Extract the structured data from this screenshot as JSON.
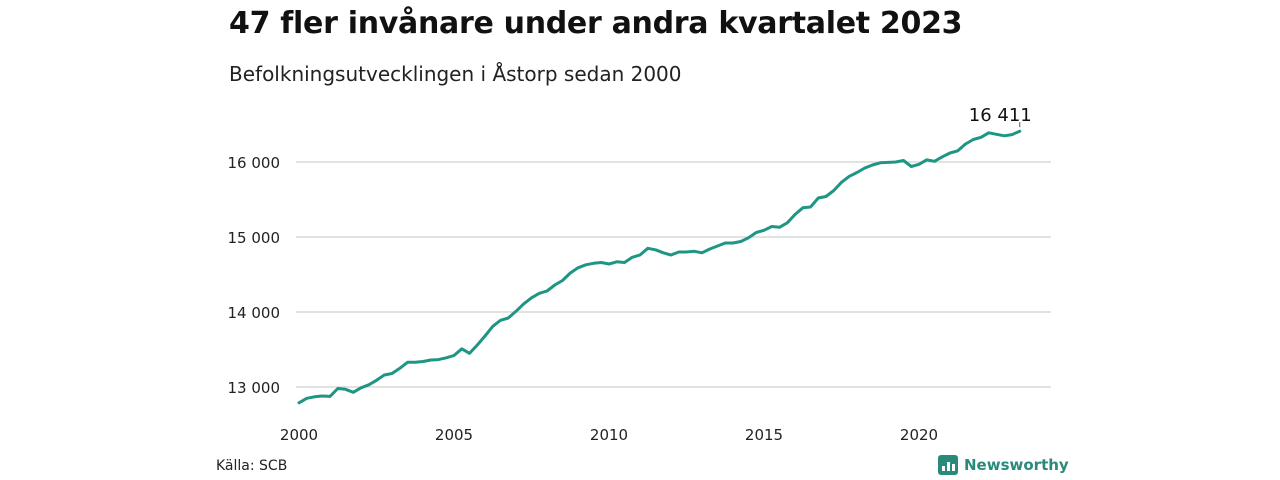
{
  "title": "47 fler invånare under andra kvartalet 2023",
  "subtitle": "Befolkningsutvecklingen i Åstorp sedan 2000",
  "source": "Källa: SCB",
  "brand": {
    "name": "Newsworthy",
    "icon": "newsworthy-logo-icon"
  },
  "colors": {
    "line": "#1f9584",
    "grid": "#d9d9d9",
    "text": "#222222",
    "brand": "#2a8a7a"
  },
  "chart_data": {
    "type": "line",
    "title": "47 fler invånare under andra kvartalet 2023",
    "xlabel": "",
    "ylabel": "",
    "xlim": [
      2000,
      2023.75
    ],
    "ylim": [
      12800,
      16600
    ],
    "x_ticks": [
      2000,
      2005,
      2010,
      2015,
      2020
    ],
    "x_tick_labels": [
      "2000",
      "2005",
      "2010",
      "2015",
      "2020"
    ],
    "y_ticks": [
      13000,
      14000,
      15000,
      16000
    ],
    "y_tick_labels": [
      "13 000",
      "14 000",
      "15 000",
      "16 000"
    ],
    "grid": true,
    "legend": "none",
    "end_label": "16 411",
    "series": [
      {
        "x": [
          2000.0,
          2000.25,
          2000.5,
          2000.75,
          2001.0,
          2001.25,
          2001.5,
          2001.75,
          2002.0,
          2002.25,
          2002.5,
          2002.75,
          2003.0,
          2003.25,
          2003.5,
          2003.75,
          2004.0,
          2004.25,
          2004.5,
          2004.75,
          2005.0,
          2005.25,
          2005.5,
          2005.75,
          2006.0,
          2006.25,
          2006.5,
          2006.75,
          2007.0,
          2007.25,
          2007.5,
          2007.75,
          2008.0,
          2008.25,
          2008.5,
          2008.75,
          2009.0,
          2009.25,
          2009.5,
          2009.75,
          2010.0,
          2010.25,
          2010.5,
          2010.75,
          2011.0,
          2011.25,
          2011.5,
          2011.75,
          2012.0,
          2012.25,
          2012.5,
          2012.75,
          2013.0,
          2013.25,
          2013.5,
          2013.75,
          2014.0,
          2014.25,
          2014.5,
          2014.75,
          2015.0,
          2015.25,
          2015.5,
          2015.75,
          2016.0,
          2016.25,
          2016.5,
          2016.75,
          2017.0,
          2017.25,
          2017.5,
          2017.75,
          2018.0,
          2018.25,
          2018.5,
          2018.75,
          2019.0,
          2019.25,
          2019.5,
          2019.75,
          2020.0,
          2020.25,
          2020.5,
          2020.75,
          2021.0,
          2021.25,
          2021.5,
          2021.75,
          2022.0,
          2022.25,
          2022.5,
          2022.75,
          2023.0,
          2023.25
        ],
        "values": [
          12790,
          12850,
          12870,
          12880,
          12875,
          12980,
          12970,
          12930,
          12990,
          13030,
          13090,
          13160,
          13180,
          13250,
          13330,
          13330,
          13340,
          13360,
          13365,
          13390,
          13420,
          13510,
          13450,
          13560,
          13680,
          13810,
          13890,
          13920,
          14010,
          14110,
          14190,
          14250,
          14280,
          14360,
          14420,
          14520,
          14590,
          14630,
          14650,
          14660,
          14640,
          14670,
          14660,
          14730,
          14760,
          14850,
          14830,
          14790,
          14760,
          14800,
          14800,
          14810,
          14790,
          14840,
          14880,
          14920,
          14920,
          14940,
          14990,
          15060,
          15090,
          15140,
          15130,
          15190,
          15300,
          15390,
          15400,
          15520,
          15540,
          15620,
          15730,
          15810,
          15860,
          15920,
          15960,
          15990,
          15995,
          16000,
          16020,
          15940,
          15970,
          16030,
          16010,
          16070,
          16120,
          16150,
          16240,
          16300,
          16330,
          16390,
          16370,
          16350,
          16365,
          16411
        ]
      }
    ]
  }
}
